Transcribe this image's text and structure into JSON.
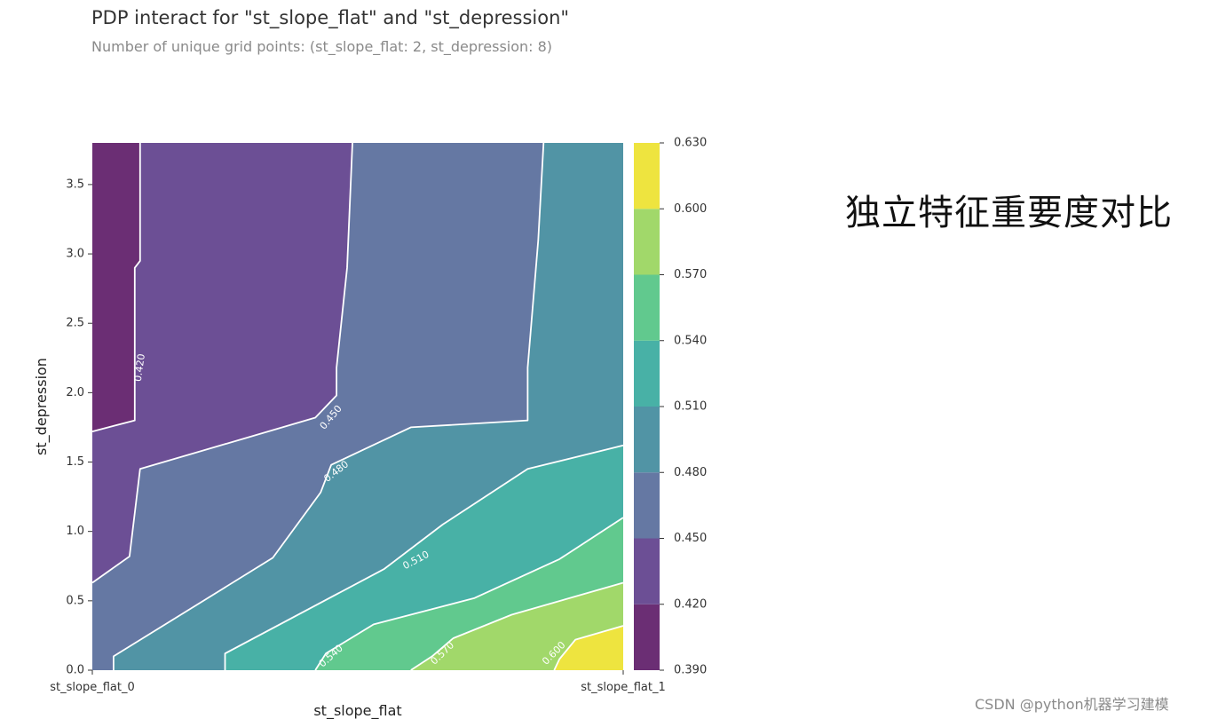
{
  "header": {
    "title": "PDP interact for \"st_slope_flat\" and \"st_depression\"",
    "subtitle": "Number of unique grid points: (st_slope_flat: 2, st_depression: 8)"
  },
  "side_text": "独立特征重要度对比",
  "watermark": "CSDN @python机器学习建模",
  "chart_data": {
    "type": "heatmap",
    "subtype": "filled-contour",
    "xlabel": "st_slope_flat",
    "ylabel": "st_depression",
    "x_categories": [
      "st_slope_flat_0",
      "st_slope_flat_1"
    ],
    "y_ticks": [
      "0.0",
      "0.5",
      "1.0",
      "1.5",
      "2.0",
      "2.5",
      "3.0",
      "3.5"
    ],
    "ylim": [
      0,
      3.8
    ],
    "colorbar": {
      "levels": [
        0.39,
        0.42,
        0.45,
        0.48,
        0.51,
        0.54,
        0.57,
        0.6,
        0.63
      ],
      "tick_labels": [
        "0.390",
        "0.420",
        "0.450",
        "0.480",
        "0.510",
        "0.540",
        "0.570",
        "0.600",
        "0.630"
      ],
      "colors": [
        "#6b2e74",
        "#6c4f95",
        "#6578a3",
        "#5194a5",
        "#48b1a6",
        "#61c98e",
        "#a1d86a",
        "#eee43f"
      ]
    },
    "contour_labels": [
      "0.420",
      "0.450",
      "0.480",
      "0.510",
      "0.540",
      "0.570",
      "0.600"
    ],
    "contour_lines": [
      {
        "level": 0.42,
        "points": [
          [
            0.09,
            3.8
          ],
          [
            0.09,
            2.95
          ],
          [
            0.08,
            2.9
          ],
          [
            0.08,
            1.8
          ],
          [
            0.0,
            1.72
          ]
        ]
      },
      {
        "level": 0.45,
        "points": [
          [
            0.49,
            3.8
          ],
          [
            0.48,
            2.9
          ],
          [
            0.46,
            2.18
          ],
          [
            0.46,
            1.98
          ],
          [
            0.42,
            1.82
          ],
          [
            0.09,
            1.45
          ],
          [
            0.07,
            0.82
          ],
          [
            0.0,
            0.63
          ]
        ]
      },
      {
        "level": 0.48,
        "points": [
          [
            0.85,
            3.8
          ],
          [
            0.84,
            3.1
          ],
          [
            0.82,
            2.18
          ],
          [
            0.82,
            1.8
          ],
          [
            0.6,
            1.75
          ],
          [
            0.45,
            1.48
          ],
          [
            0.43,
            1.28
          ],
          [
            0.34,
            0.81
          ],
          [
            0.04,
            0.1
          ],
          [
            0.04,
            0.0
          ]
        ]
      },
      {
        "level": 0.51,
        "points": [
          [
            1.0,
            1.62
          ],
          [
            0.82,
            1.45
          ],
          [
            0.66,
            1.05
          ],
          [
            0.55,
            0.73
          ],
          [
            0.25,
            0.12
          ],
          [
            0.25,
            0.0
          ]
        ]
      },
      {
        "level": 0.54,
        "points": [
          [
            1.0,
            1.1
          ],
          [
            0.88,
            0.8
          ],
          [
            0.72,
            0.52
          ],
          [
            0.53,
            0.33
          ],
          [
            0.44,
            0.12
          ],
          [
            0.42,
            0.0
          ]
        ]
      },
      {
        "level": 0.57,
        "points": [
          [
            1.0,
            0.63
          ],
          [
            0.79,
            0.4
          ],
          [
            0.68,
            0.23
          ],
          [
            0.64,
            0.1
          ],
          [
            0.6,
            0.0
          ]
        ]
      },
      {
        "level": 0.6,
        "points": [
          [
            1.0,
            0.32
          ],
          [
            0.91,
            0.22
          ],
          [
            0.88,
            0.08
          ],
          [
            0.87,
            0.0
          ]
        ]
      }
    ]
  }
}
